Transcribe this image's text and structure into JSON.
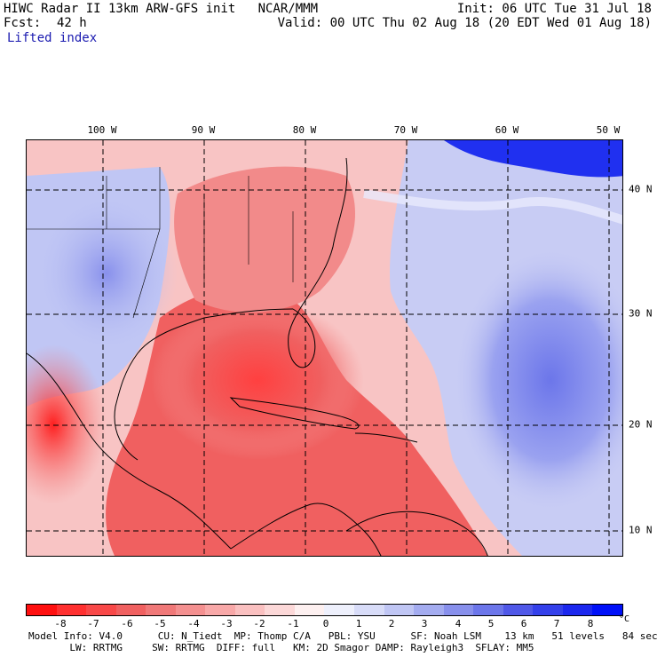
{
  "header": {
    "title_left": "HIWC Radar II 13km ARW-GFS init   NCAR/MMM",
    "fcst_label": "Fcst:",
    "fcst_value": "42 h",
    "field": "Lifted index",
    "init": "Init: 06 UTC Tue 31 Jul 18",
    "valid": "Valid: 00 UTC Thu 02 Aug 18 (20 EDT Wed 01 Aug 18)"
  },
  "map": {
    "lon_labels": [
      "100 W",
      "90 W",
      "80 W",
      "70 W",
      "60 W",
      "50 W"
    ],
    "lat_labels": [
      "40 N",
      "30 N",
      "20 N",
      "10 N"
    ],
    "colors": {
      "land_line": "#000000",
      "grid_line": "#000000",
      "neg_strong": "#ff2020",
      "neg_mid": "#f06060",
      "neg_light": "#f8b0b0",
      "neutral": "#fbe8e8",
      "pos_light": "#c8ccf4",
      "pos_mid": "#8890ee",
      "pos_strong": "#2030f0"
    }
  },
  "colorbar": {
    "colors": [
      "#ff1010",
      "#ff3030",
      "#f84848",
      "#f06060",
      "#f07878",
      "#f49090",
      "#f8a8a8",
      "#fac0c0",
      "#fcd8d8",
      "#fdf0f0",
      "#eef0fc",
      "#d8dcf8",
      "#c0c6f4",
      "#a4acf0",
      "#8890ec",
      "#6c76ea",
      "#5058e8",
      "#3440ea",
      "#1c28ee",
      "#0010f8"
    ],
    "ticks": [
      "-8",
      "-7",
      "-6",
      "-5",
      "-4",
      "-3",
      "-2",
      "-1",
      "0",
      "1",
      "2",
      "3",
      "4",
      "5",
      "6",
      "7",
      "8"
    ],
    "unit": "°C"
  },
  "footer": {
    "line1": "Model Info: V4.0      CU: N_Tiedt  MP: Thomp C/A   PBL: YSU      SF: Noah LSM    13 km   51 levels   84 sec",
    "line2": "       LW: RRTMG     SW: RRTMG  DIFF: full   KM: 2D Smagor DAMP: Rayleigh3  SFLAY: MM5"
  }
}
